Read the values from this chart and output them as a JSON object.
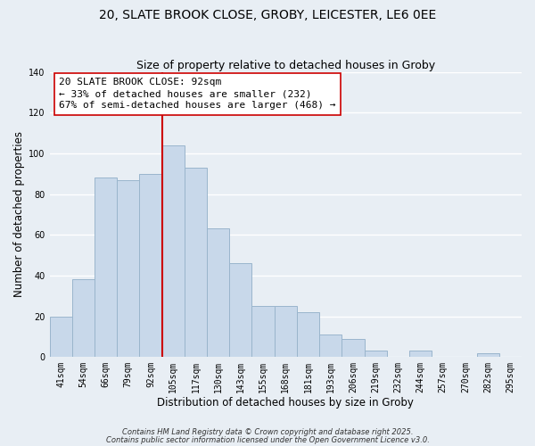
{
  "title_line1": "20, SLATE BROOK CLOSE, GROBY, LEICESTER, LE6 0EE",
  "title_line2": "Size of property relative to detached houses in Groby",
  "xlabel": "Distribution of detached houses by size in Groby",
  "ylabel": "Number of detached properties",
  "categories": [
    "41sqm",
    "54sqm",
    "66sqm",
    "79sqm",
    "92sqm",
    "105sqm",
    "117sqm",
    "130sqm",
    "143sqm",
    "155sqm",
    "168sqm",
    "181sqm",
    "193sqm",
    "206sqm",
    "219sqm",
    "232sqm",
    "244sqm",
    "257sqm",
    "270sqm",
    "282sqm",
    "295sqm"
  ],
  "values": [
    20,
    38,
    88,
    87,
    90,
    104,
    93,
    63,
    46,
    25,
    25,
    22,
    11,
    9,
    3,
    0,
    3,
    0,
    0,
    2,
    0
  ],
  "bar_color": "#c8d8ea",
  "bar_edge_color": "#9ab5cc",
  "vline_x": 4.5,
  "vline_color": "#cc0000",
  "annotation_text_line1": "20 SLATE BROOK CLOSE: 92sqm",
  "annotation_text_line2": "← 33% of detached houses are smaller (232)",
  "annotation_text_line3": "67% of semi-detached houses are larger (468) →",
  "ylim": [
    0,
    140
  ],
  "yticks": [
    0,
    20,
    40,
    60,
    80,
    100,
    120,
    140
  ],
  "footer_line1": "Contains HM Land Registry data © Crown copyright and database right 2025.",
  "footer_line2": "Contains public sector information licensed under the Open Government Licence v3.0.",
  "background_color": "#e8eef4",
  "grid_color": "#ffffff",
  "title_fontsize": 10,
  "subtitle_fontsize": 9,
  "axis_label_fontsize": 8.5,
  "tick_fontsize": 7,
  "annotation_fontsize": 8,
  "footer_fontsize": 6
}
